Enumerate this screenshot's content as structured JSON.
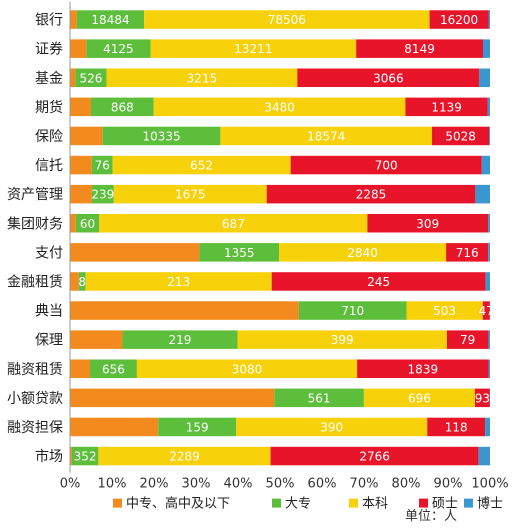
{
  "chart_data": {
    "type": "bar",
    "orientation": "horizontal",
    "stacked": "percent",
    "categories": [
      "银行",
      "证券",
      "基金",
      "期货",
      "保险",
      "信托",
      "资产管理",
      "集团财务",
      "支付",
      "金融租赁",
      "典当",
      "保理",
      "融资租赁",
      "小额贷款",
      "融资担保",
      "市场"
    ],
    "series": [
      {
        "name": "中专、高中及以下",
        "color": "#F28A1E",
        "values": [
          1900,
          1050,
          90,
          290,
          2870,
          80,
          240,
          15,
          2200,
          10,
          1510,
          100,
          280,
          1280,
          180,
          25
        ]
      },
      {
        "name": "大专",
        "color": "#5DBE3C",
        "values": [
          18484,
          4125,
          526,
          868,
          10335,
          76,
          239,
          60,
          1355,
          8,
          710,
          219,
          656,
          561,
          159,
          352
        ]
      },
      {
        "name": "本科",
        "color": "#F7D10A",
        "values": [
          78506,
          13211,
          3215,
          3480,
          18574,
          652,
          1675,
          687,
          2840,
          213,
          503,
          399,
          3080,
          696,
          390,
          2289
        ]
      },
      {
        "name": "硕士",
        "color": "#E8142A",
        "values": [
          16200,
          8149,
          3066,
          1139,
          5028,
          700,
          2285,
          309,
          716,
          245,
          47,
          79,
          1839,
          93,
          118,
          2766
        ]
      },
      {
        "name": "博士",
        "color": "#3B97CF",
        "values": [
          410,
          450,
          180,
          30,
          60,
          30,
          160,
          5,
          30,
          5,
          1,
          3,
          20,
          1,
          10,
          150
        ]
      }
    ],
    "labels": [
      [
        "",
        "18484",
        "78506",
        "16200",
        ""
      ],
      [
        "",
        "4125",
        "13211",
        "8149",
        ""
      ],
      [
        "",
        "526",
        "3215",
        "3066",
        ""
      ],
      [
        "",
        "868",
        "3480",
        "1139",
        ""
      ],
      [
        "",
        "10335",
        "18574",
        "5028",
        ""
      ],
      [
        "",
        "76",
        "652",
        "700",
        ""
      ],
      [
        "",
        "239",
        "1675",
        "2285",
        ""
      ],
      [
        "",
        "60",
        "687",
        "309",
        ""
      ],
      [
        "",
        "1355",
        "2840",
        "716",
        ""
      ],
      [
        "",
        "8",
        "213",
        "245",
        ""
      ],
      [
        "",
        "710",
        "503",
        "47",
        ""
      ],
      [
        "",
        "219",
        "399",
        "79",
        ""
      ],
      [
        "",
        "656",
        "3080",
        "1839",
        ""
      ],
      [
        "",
        "561",
        "696",
        "93",
        ""
      ],
      [
        "",
        "159",
        "390",
        "118",
        ""
      ],
      [
        "",
        "352",
        "2289",
        "2766",
        ""
      ]
    ],
    "x_ticks": [
      "0%",
      "10%",
      "20%",
      "30%",
      "40%",
      "50%",
      "60%",
      "70%",
      "80%",
      "90%",
      "100%"
    ],
    "xlim": [
      0,
      100
    ],
    "legend_position": "bottom",
    "unit_note": "单位：人"
  }
}
